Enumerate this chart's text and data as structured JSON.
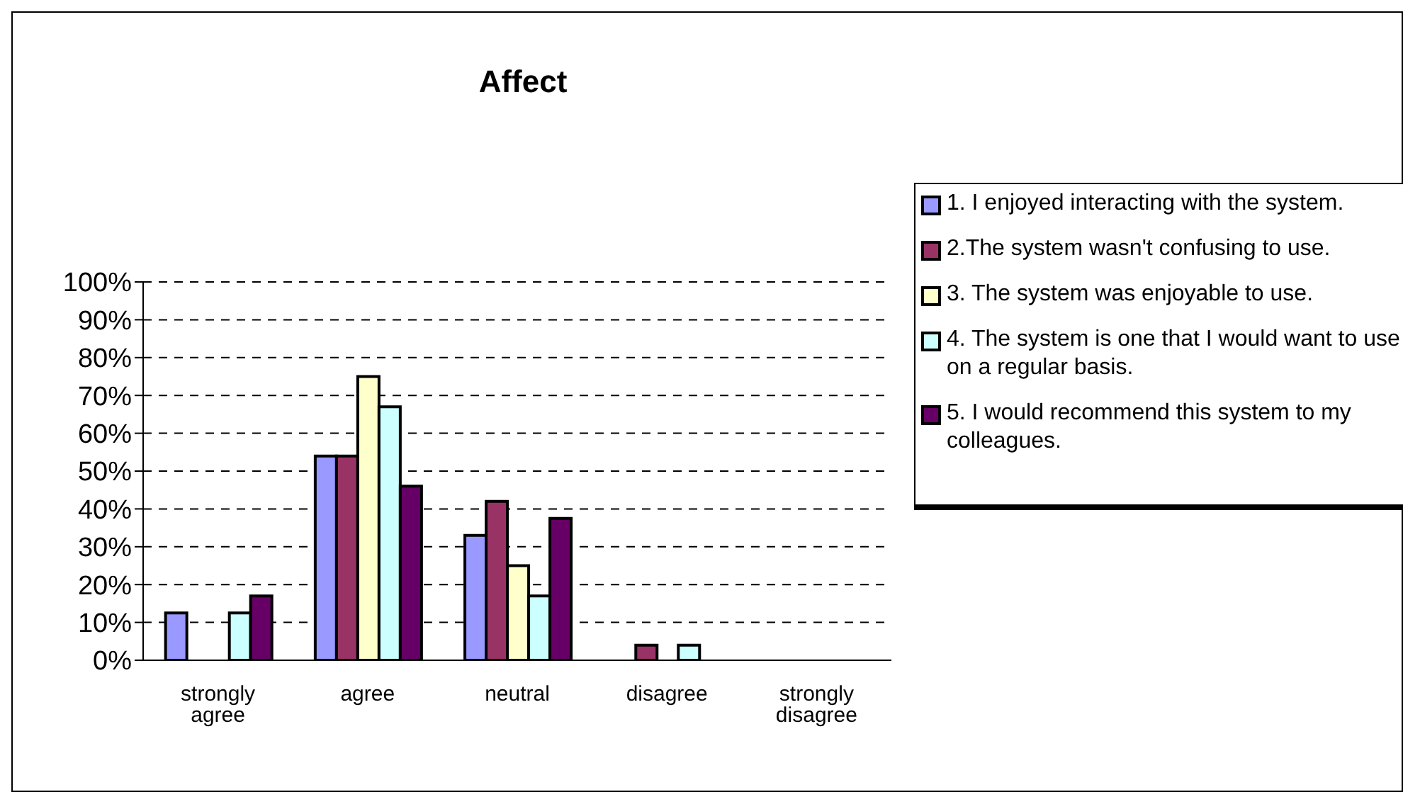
{
  "chart_data": {
    "type": "bar",
    "title": "Affect",
    "categories": [
      "strongly agree",
      "agree",
      "neutral",
      "disagree",
      "strongly disagree"
    ],
    "series": [
      {
        "name": "1. I enjoyed interacting with the system.",
        "color": "#9999ff",
        "values": [
          12.5,
          54,
          33,
          0,
          0
        ]
      },
      {
        "name": "2.The system wasn't confusing to use.",
        "color": "#993366",
        "values": [
          0,
          54,
          42,
          4,
          0
        ]
      },
      {
        "name": "3. The system was enjoyable to use.",
        "color": "#ffffcc",
        "values": [
          0,
          75,
          25,
          0,
          0
        ]
      },
      {
        "name": "4. The system is one that I would want to use on a regular basis.",
        "color": "#ccffff",
        "values": [
          12.5,
          67,
          17,
          4,
          0
        ]
      },
      {
        "name": "5. I would recommend this system to my colleagues.",
        "color": "#660066",
        "values": [
          17,
          46,
          37.5,
          0,
          0
        ]
      }
    ],
    "ylim": [
      0,
      100
    ],
    "yticks": [
      {
        "value": 0,
        "label": "0%"
      },
      {
        "value": 10,
        "label": "10%"
      },
      {
        "value": 20,
        "label": "20%"
      },
      {
        "value": 30,
        "label": "30%"
      },
      {
        "value": 40,
        "label": "40%"
      },
      {
        "value": 50,
        "label": "50%"
      },
      {
        "value": 60,
        "label": "60%"
      },
      {
        "value": 70,
        "label": "70%"
      },
      {
        "value": 80,
        "label": "80%"
      },
      {
        "value": 90,
        "label": "90%"
      },
      {
        "value": 100,
        "label": "100%"
      }
    ],
    "grid": "y",
    "legend": "right"
  }
}
